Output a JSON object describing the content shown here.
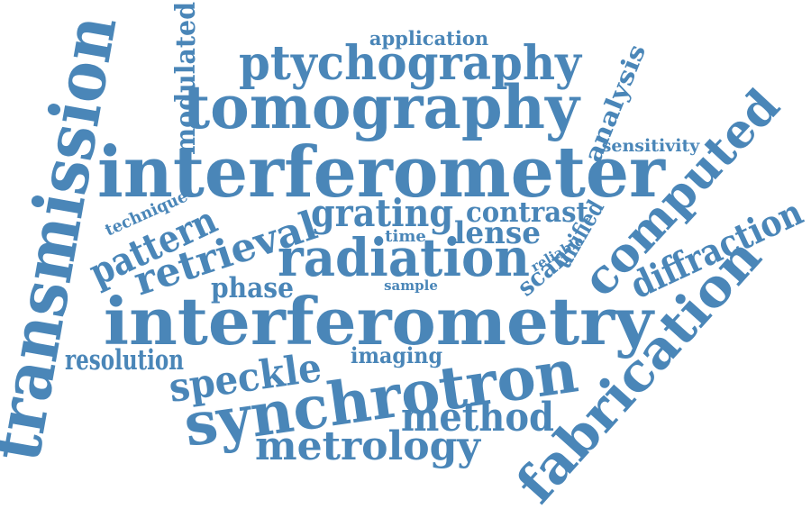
{
  "word_color": "#4a86b8",
  "background": "#ffffff",
  "words": [
    {
      "text": "application"
    },
    {
      "text": "ptychography"
    },
    {
      "text": "tomography"
    },
    {
      "text": "modulated"
    },
    {
      "text": "analysis"
    },
    {
      "text": "sensitivity"
    },
    {
      "text": "interferometer"
    },
    {
      "text": "computed"
    },
    {
      "text": "technique"
    },
    {
      "text": "pattern"
    },
    {
      "text": "retrieval"
    },
    {
      "text": "grating"
    },
    {
      "text": "contrast"
    },
    {
      "text": "time"
    },
    {
      "text": "lense"
    },
    {
      "text": "unified"
    },
    {
      "text": "reliable"
    },
    {
      "text": "scan"
    },
    {
      "text": "radiation"
    },
    {
      "text": "diffraction"
    },
    {
      "text": "phase"
    },
    {
      "text": "sample"
    },
    {
      "text": "interferometry"
    },
    {
      "text": "fabrication"
    },
    {
      "text": "resolution"
    },
    {
      "text": "imaging"
    },
    {
      "text": "speckle"
    },
    {
      "text": "synchrotron"
    },
    {
      "text": "method"
    },
    {
      "text": "metrology"
    },
    {
      "text": "transmission"
    }
  ]
}
